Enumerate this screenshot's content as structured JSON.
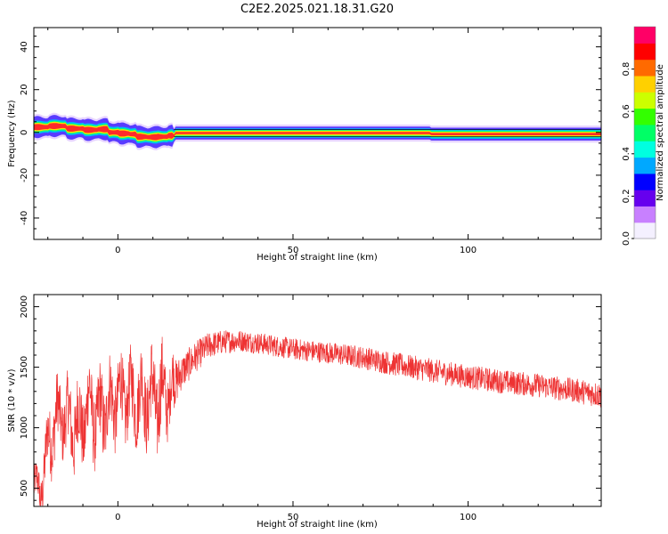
{
  "figure": {
    "title": "C2E2.2025.021.18.31.G20"
  },
  "chart_data": [
    {
      "type": "heatmap",
      "xlabel": "Height of straight line (km)",
      "ylabel": "Frequency (Hz)",
      "xlim": [
        -24,
        138
      ],
      "ylim": [
        -50,
        49
      ],
      "xticks": [
        0,
        50,
        100
      ],
      "yticks": [
        -40,
        -20,
        0,
        20,
        40
      ],
      "grid": false,
      "trace": [
        [
          -24,
          2.5
        ],
        [
          -20,
          3.0
        ],
        [
          -15,
          1.8
        ],
        [
          -10,
          1.2
        ],
        [
          -6,
          1.5
        ],
        [
          -3,
          0.0
        ],
        [
          0,
          -0.5
        ],
        [
          3,
          -0.8
        ],
        [
          5,
          -2.0
        ],
        [
          8,
          -2.2
        ],
        [
          11,
          -2.0
        ],
        [
          14,
          -1.5
        ],
        [
          16,
          -0.3
        ],
        [
          40,
          -0.3
        ],
        [
          88,
          -0.3
        ],
        [
          89,
          -0.8
        ],
        [
          138,
          -0.2
        ]
      ],
      "colorbar": {
        "label": "Normalized spectral amplitude",
        "range": [
          0.0,
          1.0
        ],
        "ticks": [
          "0.0",
          "0.2",
          "0.4",
          "0.6",
          "0.8"
        ],
        "colors": [
          "#f4f0ff",
          "#c880ff",
          "#6600ee",
          "#0000ff",
          "#00a8ff",
          "#00ffe0",
          "#00ff66",
          "#33ff00",
          "#ccff00",
          "#ffd000",
          "#ff6a00",
          "#ff0000",
          "#ff0066"
        ]
      }
    },
    {
      "type": "line",
      "xlabel": "Height of straight line (km)",
      "ylabel": "SNR (10 * v/v)",
      "xlim": [
        -24,
        138
      ],
      "ylim": [
        350,
        2100
      ],
      "xticks": [
        0,
        50,
        100
      ],
      "yticks": [
        500,
        1000,
        1500,
        2000
      ],
      "grid": false,
      "series": [
        {
          "color": "#ee3333",
          "envelope": [
            [
              -24,
              520,
              150
            ],
            [
              -22,
              480,
              160
            ],
            [
              -20,
              850,
              250
            ],
            [
              -18,
              1050,
              280
            ],
            [
              -16,
              1100,
              250
            ],
            [
              -14,
              1050,
              280
            ],
            [
              -12,
              1000,
              320
            ],
            [
              -10,
              1050,
              300
            ],
            [
              -8,
              1200,
              300
            ],
            [
              -6,
              1050,
              300
            ],
            [
              -4,
              1150,
              330
            ],
            [
              -2,
              1200,
              280
            ],
            [
              0,
              1250,
              300
            ],
            [
              3,
              1250,
              280
            ],
            [
              6,
              1250,
              300
            ],
            [
              9,
              1250,
              320
            ],
            [
              12,
              1250,
              350
            ],
            [
              15,
              1300,
              230
            ],
            [
              18,
              1450,
              150
            ],
            [
              22,
              1580,
              130
            ],
            [
              26,
              1680,
              110
            ],
            [
              30,
              1710,
              100
            ],
            [
              35,
              1720,
              90
            ],
            [
              40,
              1700,
              90
            ],
            [
              50,
              1650,
              90
            ],
            [
              60,
              1620,
              90
            ],
            [
              70,
              1580,
              95
            ],
            [
              80,
              1520,
              100
            ],
            [
              90,
              1470,
              100
            ],
            [
              100,
              1420,
              100
            ],
            [
              110,
              1380,
              100
            ],
            [
              120,
              1350,
              100
            ],
            [
              130,
              1310,
              100
            ],
            [
              138,
              1270,
              110
            ]
          ]
        }
      ]
    }
  ]
}
